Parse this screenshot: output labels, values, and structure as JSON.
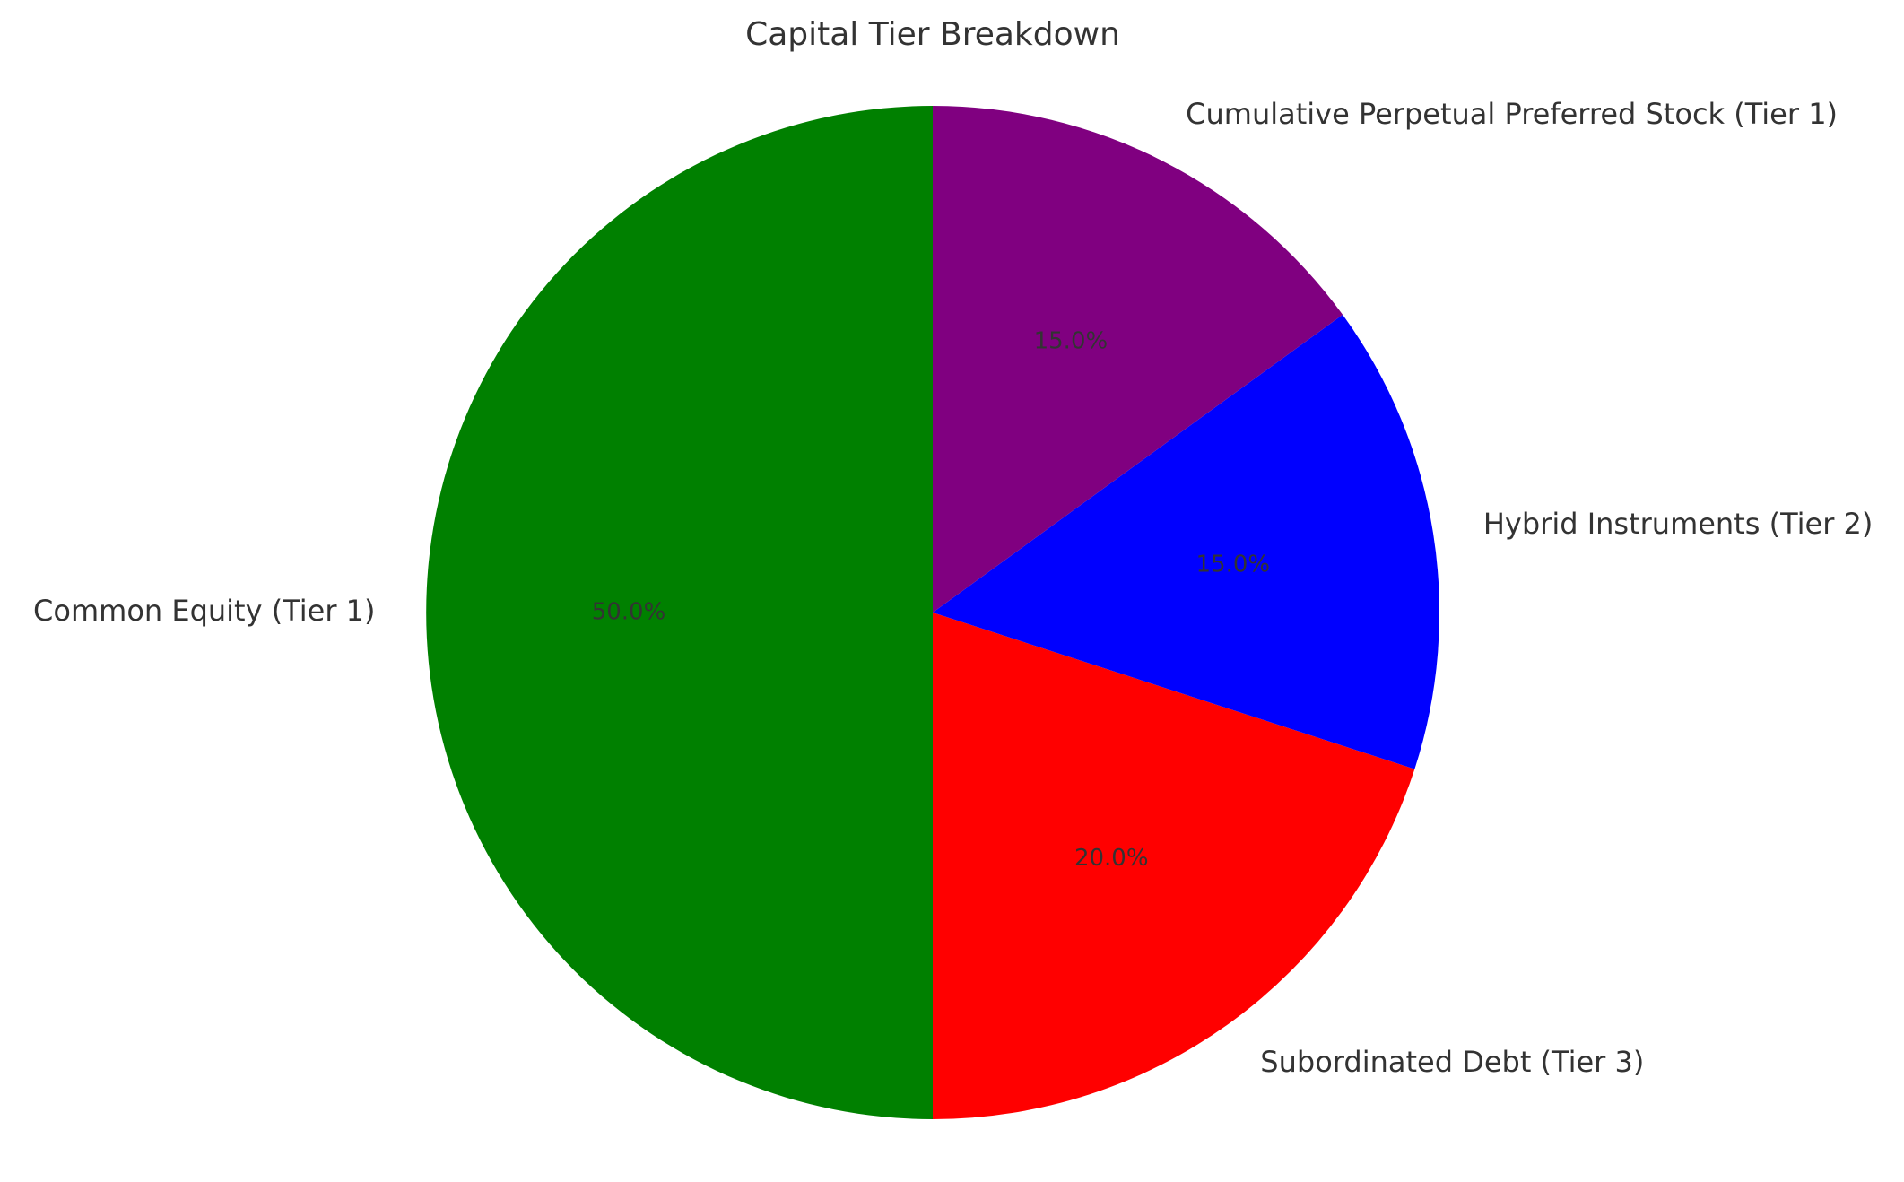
{
  "chart_data": {
    "type": "pie",
    "title": "Capital Tier Breakdown",
    "start_angle_deg": 90,
    "direction": "counterclockwise",
    "slices": [
      {
        "label": "Common Equity (Tier 1)",
        "value": 50,
        "pct_label": "50.0%",
        "color": "#008000"
      },
      {
        "label": "Subordinated Debt (Tier 3)",
        "value": 20,
        "pct_label": "20.0%",
        "color": "#ff0000"
      },
      {
        "label": "Hybrid Instruments (Tier 2)",
        "value": 15,
        "pct_label": "15.0%",
        "color": "#0000ff"
      },
      {
        "label": "Cumulative Perpetual Preferred Stock (Tier 1)",
        "value": 15,
        "pct_label": "15.0%",
        "color": "#800080"
      }
    ]
  }
}
